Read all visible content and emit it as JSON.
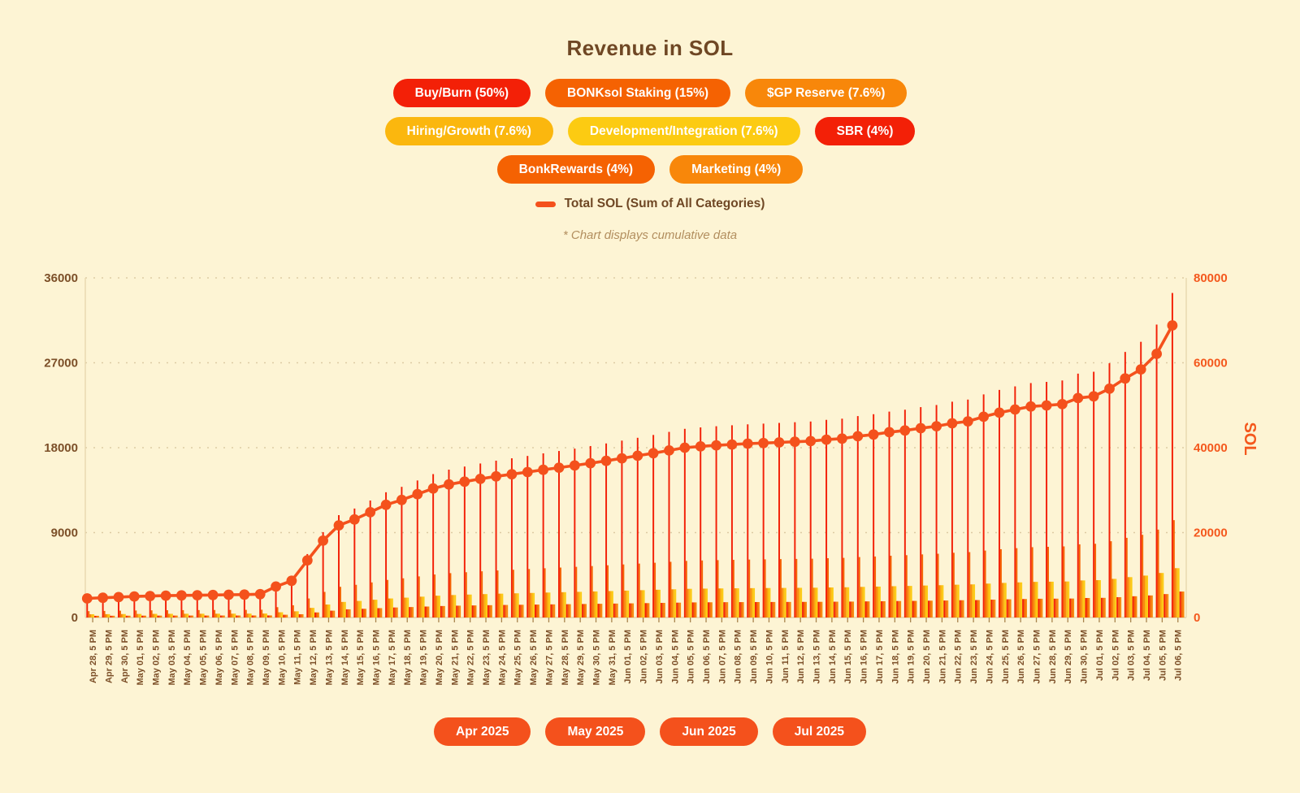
{
  "page": {
    "background": "#fdf4d4"
  },
  "header": {
    "title": "Revenue in SOL"
  },
  "legend": {
    "items": [
      {
        "label": "Buy/Burn (50%)",
        "pct": 50,
        "color": "#f32007",
        "row": 1
      },
      {
        "label": "BONKsol Staking (15%)",
        "pct": 15,
        "color": "#f56202",
        "row": 1
      },
      {
        "label": "$GP Reserve (7.6%)",
        "pct": 7.6,
        "color": "#f8870a",
        "row": 1
      },
      {
        "label": "Hiring/Growth (7.6%)",
        "pct": 7.6,
        "color": "#fbb70e",
        "row": 2
      },
      {
        "label": "Development/Integration (7.6%)",
        "pct": 7.6,
        "color": "#fccb12",
        "row": 2
      },
      {
        "label": "SBR (4%)",
        "pct": 4,
        "color": "#f32007",
        "row": 2
      },
      {
        "label": "BonkRewards (4%)",
        "pct": 4,
        "color": "#f56202",
        "row": 3
      },
      {
        "label": "Marketing (4%)",
        "pct": 4,
        "color": "#f8870a",
        "row": 3
      }
    ],
    "total_line": {
      "label": "Total SOL (Sum of All Categories)",
      "color": "#f4511c"
    }
  },
  "note": "* Chart displays cumulative data",
  "chart_data": {
    "type": "bar",
    "subtype": "grouped bars (left axis) + cumulative total line with dot markers (right axis)",
    "title": "Revenue in SOL",
    "cumulative": true,
    "x": [
      "Apr 28, 5 PM",
      "Apr 29, 5 PM",
      "Apr 30, 5 PM",
      "May 01, 5 PM",
      "May 02, 5 PM",
      "May 03, 5 PM",
      "May 04, 5 PM",
      "May 05, 5 PM",
      "May 06, 5 PM",
      "May 07, 5 PM",
      "May 08, 5 PM",
      "May 09, 5 PM",
      "May 10, 5 PM",
      "May 11, 5 PM",
      "May 12, 5 PM",
      "May 13, 5 PM",
      "May 14, 5 PM",
      "May 15, 5 PM",
      "May 16, 5 PM",
      "May 17, 5 PM",
      "May 18, 5 PM",
      "May 19, 5 PM",
      "May 20, 5 PM",
      "May 21, 5 PM",
      "May 22, 5 PM",
      "May 23, 5 PM",
      "May 24, 5 PM",
      "May 25, 5 PM",
      "May 26, 5 PM",
      "May 27, 5 PM",
      "May 28, 5 PM",
      "May 29, 5 PM",
      "May 30, 5 PM",
      "May 31, 5 PM",
      "Jun 01, 5 PM",
      "Jun 02, 5 PM",
      "Jun 03, 5 PM",
      "Jun 04, 5 PM",
      "Jun 05, 5 PM",
      "Jun 06, 5 PM",
      "Jun 07, 5 PM",
      "Jun 08, 5 PM",
      "Jun 09, 5 PM",
      "Jun 10, 5 PM",
      "Jun 11, 5 PM",
      "Jun 12, 5 PM",
      "Jun 13, 5 PM",
      "Jun 14, 5 PM",
      "Jun 15, 5 PM",
      "Jun 16, 5 PM",
      "Jun 17, 5 PM",
      "Jun 18, 5 PM",
      "Jun 19, 5 PM",
      "Jun 20, 5 PM",
      "Jun 21, 5 PM",
      "Jun 22, 5 PM",
      "Jun 23, 5 PM",
      "Jun 24, 5 PM",
      "Jun 25, 5 PM",
      "Jun 26, 5 PM",
      "Jun 27, 5 PM",
      "Jun 28, 5 PM",
      "Jun 29, 5 PM",
      "Jun 30, 5 PM",
      "Jul 01, 5 PM",
      "Jul 02, 5 PM",
      "Jul 03, 5 PM",
      "Jul 04, 5 PM",
      "Jul 05, 5 PM",
      "Jul 06, 5 PM"
    ],
    "line": {
      "name": "Total SOL (Sum of All Categories)",
      "axis": "right",
      "color": "#f4511c",
      "values": [
        4500,
        4650,
        4800,
        4950,
        5050,
        5150,
        5200,
        5250,
        5300,
        5350,
        5400,
        5500,
        7300,
        8650,
        13450,
        18100,
        21700,
        23100,
        24800,
        26550,
        27700,
        29050,
        30400,
        31350,
        32000,
        32650,
        33250,
        33750,
        34250,
        34800,
        35300,
        35800,
        36350,
        36900,
        37500,
        38100,
        38700,
        39350,
        40000,
        40300,
        40550,
        40750,
        40950,
        41100,
        41250,
        41400,
        41550,
        41900,
        42150,
        42700,
        43100,
        43650,
        44050,
        44600,
        45050,
        45750,
        46200,
        47300,
        48250,
        49000,
        49700,
        49950,
        50250,
        51700,
        52100,
        53900,
        56300,
        58450,
        62100,
        68800
      ]
    },
    "bar_series_note": "8 bars per date, one per legend category; category_value = pct/100 * total (values estimated from pixels, cumulative)",
    "left_axis": {
      "ticks": [
        0,
        9000,
        18000,
        27000,
        36000
      ],
      "max": 36000,
      "label_color": "#7c4f28"
    },
    "right_axis": {
      "ticks": [
        0,
        20000,
        40000,
        60000,
        80000
      ],
      "max": 80000,
      "label": "SOL",
      "label_color": "#f4581d"
    },
    "grid": "horizontal dashed, tan"
  },
  "footer": {
    "buttons": [
      {
        "label": "Apr 2025"
      },
      {
        "label": "May 2025"
      },
      {
        "label": "Jun 2025"
      },
      {
        "label": "Jul 2025"
      }
    ],
    "button_color": "#f4511c"
  }
}
